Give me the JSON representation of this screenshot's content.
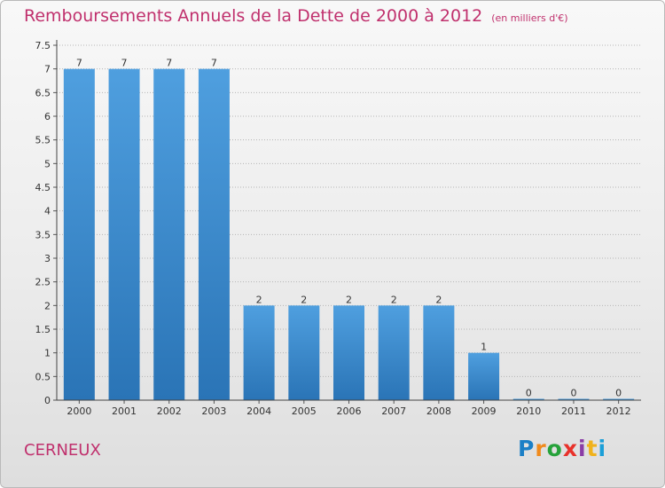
{
  "header": {
    "title": "Remboursements Annuels de la Dette de 2000 à 2012",
    "subtitle": "(en milliers d'€)"
  },
  "footer": {
    "commune": "CERNEUX",
    "logo": [
      "P",
      "r",
      "o",
      "x",
      "i",
      "t",
      "i"
    ]
  },
  "colors": {
    "bar": "#4f9fdf",
    "bar_dark": "#2a74b6",
    "title": "#c0306d",
    "grid": "#b5b5b5"
  },
  "chart_data": {
    "type": "bar",
    "title": "Remboursements Annuels de la Dette de 2000 à 2012",
    "subtitle": "(en milliers d'€)",
    "categories": [
      "2000",
      "2001",
      "2002",
      "2003",
      "2004",
      "2005",
      "2006",
      "2007",
      "2008",
      "2009",
      "2010",
      "2011",
      "2012"
    ],
    "values": [
      7,
      7,
      7,
      7,
      2,
      2,
      2,
      2,
      2,
      1,
      0,
      0,
      0
    ],
    "value_labels": [
      "7",
      "7",
      "7",
      "7",
      "2",
      "2",
      "2",
      "2",
      "2",
      "1",
      "0",
      "0",
      "0"
    ],
    "yticks": [
      "0",
      "0.5",
      "1",
      "1.5",
      "2",
      "2.5",
      "3",
      "3.5",
      "4",
      "4.5",
      "5",
      "5.5",
      "6",
      "6.5",
      "7",
      "7.5"
    ],
    "ylim": [
      0,
      7.5
    ],
    "grid": true,
    "xlabel": "",
    "ylabel": ""
  }
}
